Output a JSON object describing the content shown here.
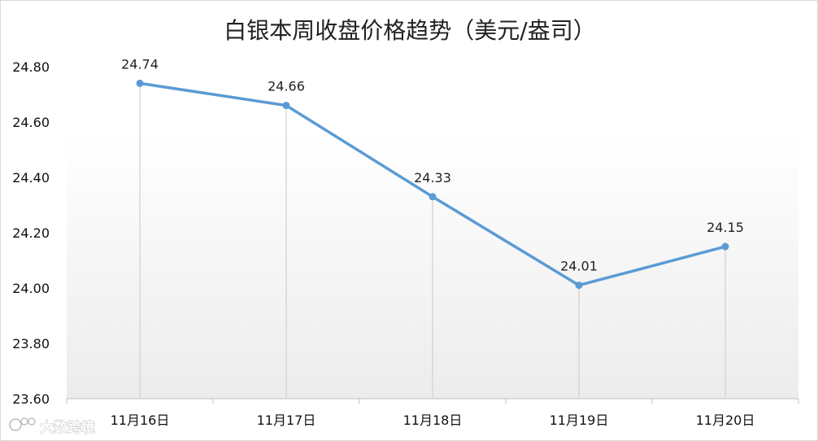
{
  "chart_data": {
    "type": "line",
    "title": "白银本周收盘价格趋势（美元/盎司）",
    "categories": [
      "11月16日",
      "11月17日",
      "11月18日",
      "11月19日",
      "11月20日"
    ],
    "series": [
      {
        "values": [
          24.74,
          24.66,
          24.33,
          24.01,
          24.15
        ],
        "data_labels": [
          "24.74",
          "24.66",
          "24.33",
          "24.01",
          "24.15"
        ]
      }
    ],
    "ylim": [
      23.6,
      24.8
    ],
    "yticks": [
      "23.60",
      "23.80",
      "24.00",
      "24.20",
      "24.40",
      "24.60",
      "24.80"
    ],
    "xlabel": "",
    "ylabel": "",
    "grid": false,
    "drop_lines": true,
    "legend": "none",
    "colors": {
      "line": "#5b9bd5",
      "drop_line": "#d0d0d0",
      "axis": "#bfbfbf"
    }
  },
  "watermark": {
    "text": "大数跨境",
    "icon": "logo-icon"
  }
}
